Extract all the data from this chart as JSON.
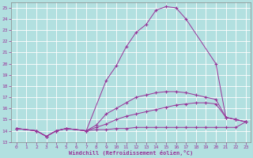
{
  "background_color": "#b2e0e0",
  "grid_color": "#c8e8e8",
  "line_color": "#993399",
  "xlabel": "Windchill (Refroidissement éolien,°C)",
  "xlim": [
    -0.5,
    23.5
  ],
  "ylim": [
    13,
    25.5
  ],
  "xticks": [
    0,
    1,
    2,
    3,
    4,
    5,
    6,
    7,
    8,
    9,
    10,
    11,
    12,
    13,
    14,
    15,
    16,
    17,
    18,
    19,
    20,
    21,
    22,
    23
  ],
  "yticks": [
    13,
    14,
    15,
    16,
    17,
    18,
    19,
    20,
    21,
    22,
    23,
    24,
    25
  ],
  "series": [
    {
      "x": [
        0,
        2,
        3,
        4,
        5,
        7,
        9,
        10,
        11,
        12,
        13,
        14,
        15,
        16,
        17,
        20,
        21,
        22,
        23
      ],
      "y": [
        14.2,
        14.0,
        13.5,
        14.0,
        14.2,
        14.0,
        18.5,
        19.8,
        21.5,
        22.8,
        23.5,
        24.8,
        25.1,
        25.0,
        24.0,
        20.0,
        15.2,
        15.0,
        14.8
      ]
    },
    {
      "x": [
        0,
        2,
        3,
        4,
        5,
        7,
        8,
        9,
        10,
        11,
        12,
        13,
        14,
        15,
        16,
        17,
        18,
        19,
        20,
        21,
        22,
        23
      ],
      "y": [
        14.2,
        14.0,
        13.5,
        14.0,
        14.2,
        14.0,
        14.5,
        15.5,
        16.0,
        16.5,
        17.0,
        17.2,
        17.4,
        17.5,
        17.5,
        17.4,
        17.2,
        17.0,
        16.8,
        15.2,
        15.0,
        14.8
      ]
    },
    {
      "x": [
        0,
        2,
        3,
        4,
        5,
        7,
        8,
        9,
        10,
        11,
        12,
        13,
        14,
        15,
        16,
        17,
        18,
        19,
        20,
        21,
        22,
        23
      ],
      "y": [
        14.2,
        14.0,
        13.5,
        14.0,
        14.2,
        14.0,
        14.3,
        14.6,
        15.0,
        15.3,
        15.5,
        15.7,
        15.9,
        16.1,
        16.3,
        16.4,
        16.5,
        16.5,
        16.4,
        15.2,
        15.0,
        14.8
      ]
    },
    {
      "x": [
        0,
        2,
        3,
        4,
        5,
        7,
        8,
        9,
        10,
        11,
        12,
        13,
        14,
        15,
        16,
        17,
        18,
        19,
        20,
        21,
        22,
        23
      ],
      "y": [
        14.2,
        14.0,
        13.5,
        14.0,
        14.2,
        14.0,
        14.1,
        14.1,
        14.2,
        14.2,
        14.3,
        14.3,
        14.3,
        14.3,
        14.3,
        14.3,
        14.3,
        14.3,
        14.3,
        14.3,
        14.3,
        14.8
      ]
    }
  ]
}
